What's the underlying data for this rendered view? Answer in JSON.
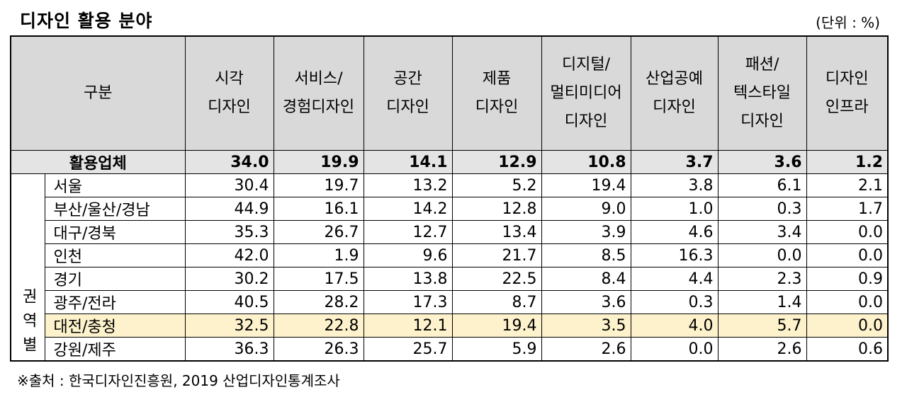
{
  "header": {
    "title": "디자인 활용 분야",
    "unit": "(단위 : %)"
  },
  "table": {
    "columns": [
      "구분",
      "시각\n디자인",
      "서비스/\n경험디자인",
      "공간\n디자인",
      "제품\n디자인",
      "디지털/\n멀티미디어\n디자인",
      "산업공예\n디자인",
      "패션/\n텍스타일\n디자인",
      "디자인\n인프라"
    ],
    "total": {
      "label": "활용업체",
      "values": [
        "34.0",
        "19.9",
        "14.1",
        "12.9",
        "10.8",
        "3.7",
        "3.6",
        "1.2"
      ]
    },
    "group": "권역별",
    "rows": [
      {
        "label": "서울",
        "values": [
          "30.4",
          "19.7",
          "13.2",
          "5.2",
          "19.4",
          "3.8",
          "6.1",
          "2.1"
        ]
      },
      {
        "label": "부산/울산/경남",
        "values": [
          "44.9",
          "16.1",
          "14.2",
          "12.8",
          "9.0",
          "1.0",
          "0.3",
          "1.7"
        ]
      },
      {
        "label": "대구/경북",
        "values": [
          "35.3",
          "26.7",
          "12.7",
          "13.4",
          "3.9",
          "4.6",
          "3.4",
          "0.0"
        ]
      },
      {
        "label": "인천",
        "values": [
          "42.0",
          "1.9",
          "9.6",
          "21.7",
          "8.5",
          "16.3",
          "0.0",
          "0.0"
        ]
      },
      {
        "label": "경기",
        "values": [
          "30.2",
          "17.5",
          "13.8",
          "22.5",
          "8.4",
          "4.4",
          "2.3",
          "0.9"
        ]
      },
      {
        "label": "광주/전라",
        "values": [
          "40.5",
          "28.2",
          "17.3",
          "8.7",
          "3.6",
          "0.3",
          "1.4",
          "0.0"
        ]
      },
      {
        "label": "대전/충청",
        "values": [
          "32.5",
          "22.8",
          "12.1",
          "19.4",
          "3.5",
          "4.0",
          "5.7",
          "0.0"
        ]
      },
      {
        "label": "강원/제주",
        "values": [
          "36.3",
          "26.3",
          "25.7",
          "5.9",
          "2.6",
          "0.0",
          "2.6",
          "0.6"
        ]
      }
    ]
  },
  "source": "※출처 : 한국디자인진흥원, 2019 산업디자인통계조사"
}
